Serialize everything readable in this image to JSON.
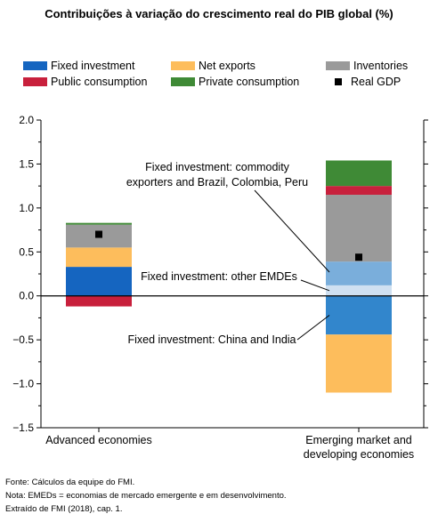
{
  "title": "Contribuições à variação do crescimento real do PIB global (%)",
  "chart_data": {
    "type": "bar",
    "stacked": true,
    "categories": [
      "Advanced economies",
      "Emerging market and developing economies"
    ],
    "categories_lines": [
      [
        "Advanced economies"
      ],
      [
        "Emerging market and",
        "developing economies"
      ]
    ],
    "ylim": [
      -1.5,
      2.0
    ],
    "yticks": [
      -1.5,
      -1.0,
      -0.5,
      0.0,
      0.5,
      1.0,
      1.5,
      2.0
    ],
    "ytick_labels": [
      "−1.5",
      "−1.0",
      "−0.5",
      "0.0",
      "0.5",
      "1.0",
      "1.5",
      "2.0"
    ],
    "legend": [
      {
        "label": "Fixed investment",
        "color": "#1565c0"
      },
      {
        "label": "Net exports",
        "color": "#fdbd5c"
      },
      {
        "label": "Inventories",
        "color": "#9a9a9a"
      },
      {
        "label": "Public consumption",
        "color": "#c8203c"
      },
      {
        "label": "Private consumption",
        "color": "#3f8a36"
      },
      {
        "label": "Real GDP",
        "color": "#000000",
        "marker": "square"
      }
    ],
    "series": [
      {
        "name": "Fixed investment: China and India",
        "color": "#3286cc",
        "values": [
          0,
          -0.44
        ]
      },
      {
        "name": "Fixed investment: other EMDEs",
        "color": "#cfe0f1",
        "values": [
          0,
          0.12
        ]
      },
      {
        "name": "Fixed investment: commodity exporters and Brazil, Colombia, Peru",
        "color": "#7aaedb",
        "values": [
          0,
          0.27
        ]
      },
      {
        "name": "Fixed investment",
        "color": "#1565c0",
        "values": [
          0.33,
          0
        ]
      },
      {
        "name": "Net exports",
        "color": "#fdbd5c",
        "values": [
          0.22,
          -0.66
        ]
      },
      {
        "name": "Inventories",
        "color": "#9a9a9a",
        "values": [
          0.26,
          0.76
        ]
      },
      {
        "name": "Public consumption",
        "color": "#c8203c",
        "values": [
          -0.12,
          0.1
        ]
      },
      {
        "name": "Private consumption",
        "color": "#3f8a36",
        "values": [
          0.02,
          0.29
        ]
      }
    ],
    "real_gdp": [
      0.7,
      0.44
    ],
    "annotations": [
      {
        "lines": [
          "Fixed investment: commodity",
          "exporters and Brazil, Colombia, Peru"
        ]
      },
      {
        "lines": [
          "Fixed investment: other EMDEs"
        ]
      },
      {
        "lines": [
          "Fixed investment: China and India"
        ]
      }
    ]
  },
  "footer": {
    "source": "Fonte: Cálculos da equipe do FMI.",
    "note": "Nota: EMEDs = economias de mercado emergente e em desenvolvimento.",
    "extract": "Extraído de FMI (2018), cap. 1."
  }
}
